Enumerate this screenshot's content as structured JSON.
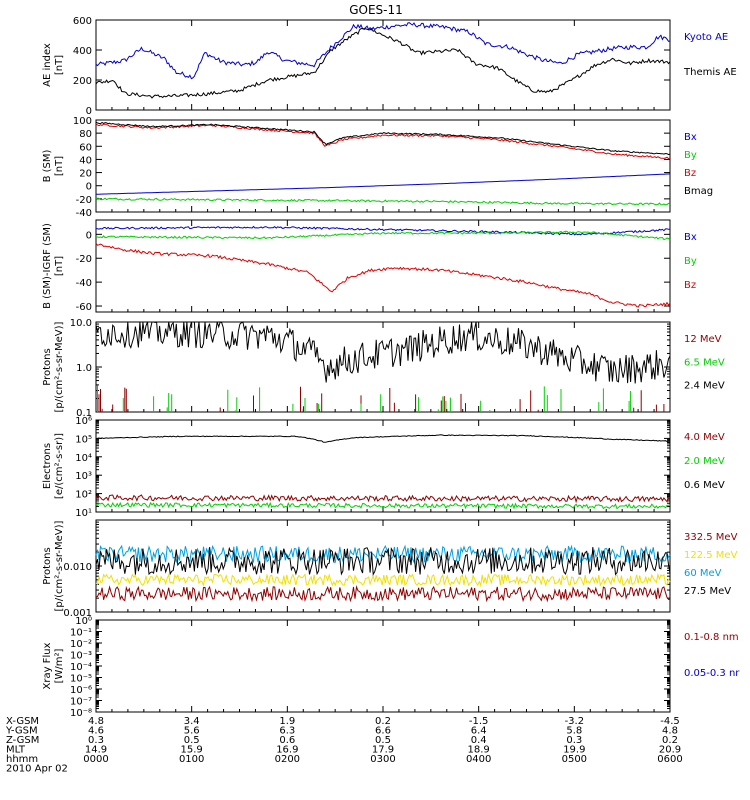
{
  "title": "GOES-11",
  "time_ticks": [
    "0000",
    "0100",
    "0200",
    "0300",
    "0400",
    "0500",
    "0600"
  ],
  "footer": {
    "date": "2010 Apr 02",
    "row_labels": [
      "X-GSM",
      "Y-GSM",
      "Z-GSM",
      "MLT",
      "hhmm"
    ],
    "rows": [
      [
        "4.8",
        "3.4",
        "1.9",
        "0.2",
        "-1.5",
        "-3.2",
        "-4.5"
      ],
      [
        "4.6",
        "5.6",
        "6.3",
        "6.6",
        "6.4",
        "5.8",
        "4.8"
      ],
      [
        "0.3",
        "0.5",
        "0.6",
        "0.5",
        "0.4",
        "0.3",
        "0.2"
      ],
      [
        "14.9",
        "15.9",
        "16.9",
        "17.9",
        "18.9",
        "19.9",
        "20.9"
      ]
    ]
  },
  "colors": {
    "black": "#000000",
    "blue": "#0000d0",
    "red": "#e00000",
    "green": "#00d000",
    "darkred": "#900000",
    "yellow": "#f0e000",
    "cyan": "#00a0e0"
  },
  "chart_data": [
    {
      "type": "line",
      "id": "ae",
      "ylabel": "AE index\n[nT]",
      "scale": "linear",
      "ylim": [
        0,
        600
      ],
      "yticks": [
        0,
        200,
        400,
        600
      ],
      "ytick_labels": [
        "0",
        "200",
        "400",
        "600"
      ],
      "series": [
        {
          "name": "Kyoto AE",
          "color": "blue",
          "style": "noisy",
          "noise": 15,
          "points": [
            [
              0,
              300
            ],
            [
              0.05,
              330
            ],
            [
              0.08,
              410
            ],
            [
              0.12,
              340
            ],
            [
              0.14,
              250
            ],
            [
              0.17,
              220
            ],
            [
              0.19,
              380
            ],
            [
              0.22,
              320
            ],
            [
              0.26,
              300
            ],
            [
              0.28,
              320
            ],
            [
              0.3,
              390
            ],
            [
              0.33,
              330
            ],
            [
              0.36,
              310
            ],
            [
              0.38,
              300
            ],
            [
              0.41,
              420
            ],
            [
              0.45,
              560
            ],
            [
              0.48,
              540
            ],
            [
              0.52,
              560
            ],
            [
              0.55,
              570
            ],
            [
              0.58,
              560
            ],
            [
              0.61,
              550
            ],
            [
              0.65,
              520
            ],
            [
              0.68,
              440
            ],
            [
              0.72,
              420
            ],
            [
              0.75,
              370
            ],
            [
              0.78,
              330
            ],
            [
              0.81,
              310
            ],
            [
              0.84,
              370
            ],
            [
              0.87,
              390
            ],
            [
              0.9,
              410
            ],
            [
              0.93,
              420
            ],
            [
              0.96,
              420
            ],
            [
              0.98,
              490
            ],
            [
              1.0,
              470
            ]
          ]
        },
        {
          "name": "Themis AE",
          "color": "black",
          "style": "noisy",
          "noise": 12,
          "points": [
            [
              0,
              180
            ],
            [
              0.03,
              200
            ],
            [
              0.05,
              110
            ],
            [
              0.1,
              90
            ],
            [
              0.15,
              95
            ],
            [
              0.2,
              110
            ],
            [
              0.25,
              130
            ],
            [
              0.3,
              200
            ],
            [
              0.35,
              230
            ],
            [
              0.38,
              250
            ],
            [
              0.41,
              400
            ],
            [
              0.44,
              480
            ],
            [
              0.47,
              550
            ],
            [
              0.5,
              500
            ],
            [
              0.53,
              450
            ],
            [
              0.56,
              380
            ],
            [
              0.6,
              390
            ],
            [
              0.63,
              400
            ],
            [
              0.66,
              310
            ],
            [
              0.7,
              280
            ],
            [
              0.73,
              200
            ],
            [
              0.76,
              130
            ],
            [
              0.79,
              120
            ],
            [
              0.83,
              200
            ],
            [
              0.87,
              300
            ],
            [
              0.9,
              340
            ],
            [
              0.93,
              310
            ],
            [
              0.96,
              330
            ],
            [
              1.0,
              320
            ]
          ]
        }
      ]
    },
    {
      "type": "line",
      "id": "bsm",
      "ylabel": "B (SM)\n[nT]",
      "scale": "linear",
      "ylim": [
        -40,
        100
      ],
      "yticks": [
        -40,
        -20,
        0,
        20,
        40,
        60,
        80,
        100
      ],
      "ytick_labels": [
        "-40",
        "-20",
        "0",
        "20",
        "40",
        "60",
        "80",
        "100"
      ],
      "series": [
        {
          "name": "Bx",
          "color": "blue",
          "style": "smooth",
          "points": [
            [
              0,
              -13
            ],
            [
              0.2,
              -8
            ],
            [
              0.4,
              -3
            ],
            [
              0.6,
              3
            ],
            [
              0.8,
              10
            ],
            [
              1.0,
              18
            ]
          ]
        },
        {
          "name": "By",
          "color": "green",
          "style": "noisy",
          "noise": 1.5,
          "points": [
            [
              0,
              -20
            ],
            [
              0.3,
              -22
            ],
            [
              0.6,
              -24
            ],
            [
              0.8,
              -27
            ],
            [
              1.0,
              -28
            ]
          ]
        },
        {
          "name": "Bz",
          "color": "red",
          "style": "noisy",
          "noise": 1.5,
          "points": [
            [
              0,
              93
            ],
            [
              0.1,
              88
            ],
            [
              0.2,
              92
            ],
            [
              0.3,
              85
            ],
            [
              0.38,
              80
            ],
            [
              0.4,
              60
            ],
            [
              0.43,
              70
            ],
            [
              0.5,
              77
            ],
            [
              0.6,
              76
            ],
            [
              0.7,
              70
            ],
            [
              0.8,
              60
            ],
            [
              0.87,
              52
            ],
            [
              0.9,
              48
            ],
            [
              1.0,
              42
            ]
          ]
        },
        {
          "name": "Bmag",
          "color": "black",
          "style": "noisy",
          "noise": 1,
          "points": [
            [
              0,
              96
            ],
            [
              0.1,
              90
            ],
            [
              0.2,
              93
            ],
            [
              0.3,
              87
            ],
            [
              0.38,
              82
            ],
            [
              0.4,
              63
            ],
            [
              0.43,
              73
            ],
            [
              0.5,
              80
            ],
            [
              0.6,
              78
            ],
            [
              0.7,
              73
            ],
            [
              0.8,
              63
            ],
            [
              0.87,
              56
            ],
            [
              0.9,
              53
            ],
            [
              1.0,
              48
            ]
          ]
        }
      ]
    },
    {
      "type": "line",
      "id": "bigrf",
      "ylabel": "B (SM)-IGRF (SM)\n[nT]",
      "scale": "linear",
      "ylim": [
        -65,
        12
      ],
      "yticks": [
        -60,
        -40,
        -20,
        0
      ],
      "ytick_labels": [
        "-60",
        "-40",
        "-20",
        "0"
      ],
      "series": [
        {
          "name": "Bx",
          "color": "blue",
          "style": "noisy",
          "noise": 0.8,
          "points": [
            [
              0,
              5
            ],
            [
              0.3,
              6
            ],
            [
              0.5,
              4
            ],
            [
              0.7,
              2
            ],
            [
              0.85,
              0
            ],
            [
              1.0,
              4
            ]
          ]
        },
        {
          "name": "By",
          "color": "green",
          "style": "noisy",
          "noise": 0.8,
          "points": [
            [
              0,
              -2
            ],
            [
              0.3,
              -3
            ],
            [
              0.5,
              1
            ],
            [
              0.7,
              1
            ],
            [
              0.85,
              2
            ],
            [
              1.0,
              -4
            ]
          ]
        },
        {
          "name": "Bz",
          "color": "red",
          "style": "noisy",
          "noise": 1.2,
          "points": [
            [
              0,
              -8
            ],
            [
              0.05,
              -13
            ],
            [
              0.1,
              -16
            ],
            [
              0.2,
              -18
            ],
            [
              0.3,
              -25
            ],
            [
              0.37,
              -32
            ],
            [
              0.41,
              -48
            ],
            [
              0.44,
              -36
            ],
            [
              0.48,
              -30
            ],
            [
              0.52,
              -28
            ],
            [
              0.6,
              -30
            ],
            [
              0.68,
              -35
            ],
            [
              0.75,
              -40
            ],
            [
              0.8,
              -45
            ],
            [
              0.86,
              -50
            ],
            [
              0.9,
              -57
            ],
            [
              0.95,
              -60
            ],
            [
              1.0,
              -58
            ]
          ]
        }
      ]
    },
    {
      "type": "line",
      "id": "protons1",
      "ylabel": "Protons\n[p/(cm²-s-sr-MeV)]",
      "scale": "log",
      "ylim": [
        0.1,
        10
      ],
      "yticks": [
        0.1,
        1,
        10
      ],
      "ytick_labels": [
        "0.1",
        "1.0",
        "10.0"
      ],
      "series": [
        {
          "name": "12 MeV",
          "color": "darkred",
          "style": "spikes",
          "points": [
            [
              0,
              0.1
            ],
            [
              1.0,
              0.1
            ]
          ]
        },
        {
          "name": "6.5 MeV",
          "color": "green",
          "style": "spikes",
          "points": [
            [
              0,
              0.1
            ],
            [
              1.0,
              0.1
            ]
          ]
        },
        {
          "name": "2.4 MeV",
          "color": "black",
          "style": "noisy",
          "noise": 0.35,
          "log": true,
          "points": [
            [
              0,
              6
            ],
            [
              0.15,
              6
            ],
            [
              0.3,
              5
            ],
            [
              0.4,
              1.0
            ],
            [
              0.45,
              1.5
            ],
            [
              0.55,
              2.5
            ],
            [
              0.65,
              5
            ],
            [
              0.75,
              3
            ],
            [
              0.82,
              1.5
            ],
            [
              0.9,
              0.8
            ],
            [
              1.0,
              1.2
            ]
          ]
        }
      ]
    },
    {
      "type": "line",
      "id": "electrons",
      "ylabel": "Electrons\n[e/(cm²-s-sr)]",
      "scale": "log",
      "ylim": [
        10,
        1000000
      ],
      "yticks": [
        10,
        100,
        1000,
        10000,
        100000,
        1000000
      ],
      "ytick_labels": [
        "10¹",
        "10²",
        "10³",
        "10⁴",
        "10⁵",
        "10⁶"
      ],
      "series": [
        {
          "name": "4.0 MeV",
          "color": "darkred",
          "style": "noisy",
          "noise": 0.15,
          "log": true,
          "points": [
            [
              0,
              60
            ],
            [
              0.5,
              55
            ],
            [
              1.0,
              50
            ]
          ]
        },
        {
          "name": "2.0 MeV",
          "color": "green",
          "style": "noisy",
          "noise": 0.12,
          "log": true,
          "points": [
            [
              0,
              25
            ],
            [
              0.5,
              22
            ],
            [
              1.0,
              20
            ]
          ]
        },
        {
          "name": "0.6 MeV",
          "color": "black",
          "style": "noisy",
          "noise": 0.02,
          "log": true,
          "points": [
            [
              0,
              100000
            ],
            [
              0.15,
              130000
            ],
            [
              0.35,
              130000
            ],
            [
              0.4,
              60000
            ],
            [
              0.45,
              110000
            ],
            [
              0.6,
              150000
            ],
            [
              0.75,
              140000
            ],
            [
              0.9,
              90000
            ],
            [
              1.0,
              70000
            ]
          ]
        }
      ]
    },
    {
      "type": "line",
      "id": "protons2",
      "ylabel": "Protons\n[p/(cm²-s-sr-MeV)]",
      "scale": "log",
      "ylim": [
        0.001,
        0.1
      ],
      "yticks": [
        0.001,
        0.01
      ],
      "ytick_labels": [
        "0.001",
        "0.010"
      ],
      "series": [
        {
          "name": "332.5 MeV",
          "color": "darkred",
          "style": "noisy",
          "noise": 0.15,
          "log": true,
          "points": [
            [
              0,
              0.0025
            ],
            [
              1.0,
              0.0025
            ]
          ]
        },
        {
          "name": "122.5 MeV",
          "color": "yellow",
          "style": "noisy",
          "noise": 0.12,
          "log": true,
          "points": [
            [
              0,
              0.005
            ],
            [
              1.0,
              0.005
            ]
          ]
        },
        {
          "name": "60 MeV",
          "color": "cyan",
          "style": "noisy",
          "noise": 0.18,
          "log": true,
          "points": [
            [
              0,
              0.018
            ],
            [
              1.0,
              0.018
            ]
          ]
        },
        {
          "name": "27.5 MeV",
          "color": "black",
          "style": "noisy",
          "noise": 0.3,
          "log": true,
          "points": [
            [
              0,
              0.013
            ],
            [
              1.0,
              0.013
            ]
          ]
        }
      ]
    },
    {
      "type": "line",
      "id": "xray",
      "ylabel": "Xray Flux\n[W/m²]",
      "scale": "log",
      "ylim": [
        1e-08,
        1
      ],
      "yticks": [
        1,
        0.1,
        0.01,
        0.001,
        0.0001,
        1e-05,
        1e-06,
        1e-07,
        1e-08
      ],
      "ytick_labels": [
        "10⁰",
        "10⁻¹",
        "10⁻²",
        "10⁻³",
        "10⁻⁴",
        "10⁻⁵",
        "10⁻⁶",
        "10⁻⁷",
        "10⁻⁸"
      ],
      "series": [
        {
          "name": "0.1-0.8 nm",
          "color": "darkred",
          "style": "none",
          "points": []
        },
        {
          "name": "0.05-0.3 nr",
          "color": "blue",
          "style": "none",
          "points": []
        }
      ]
    }
  ]
}
